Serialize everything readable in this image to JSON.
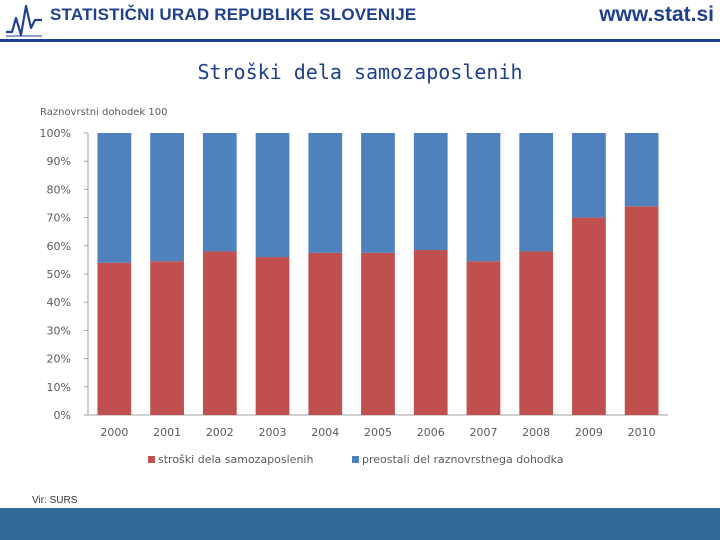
{
  "header": {
    "organization": "STATISTIČNI URAD REPUBLIKE SLOVENIJE",
    "website": "www.stat.si",
    "brand_color": "#1f3f8f"
  },
  "slide": {
    "title": "Stroški dela samozaposlenih",
    "source": "Vir: SURS"
  },
  "footer": {
    "color": "#2e6b96"
  },
  "chart_data": {
    "type": "bar",
    "stacked": true,
    "percent_stacked": true,
    "subtitle": "Raznovrstni dohodek  100",
    "categories": [
      "2000",
      "2001",
      "2002",
      "2003",
      "2004",
      "2005",
      "2006",
      "2007",
      "2008",
      "2009",
      "2010"
    ],
    "series": [
      {
        "name": "stroški dela samozaposlenih",
        "color": "#c0504d",
        "values": [
          54,
          54.5,
          58,
          56,
          57.5,
          57.5,
          58.5,
          54.5,
          58,
          70,
          74
        ]
      },
      {
        "name": "preostali del raznovrstnega dohodka",
        "color": "#4f81bd",
        "values": [
          46,
          45.5,
          42,
          44,
          42.5,
          42.5,
          41.5,
          45.5,
          42,
          30,
          26
        ]
      }
    ],
    "yticks": [
      "0%",
      "10%",
      "20%",
      "30%",
      "40%",
      "50%",
      "60%",
      "70%",
      "80%",
      "90%",
      "100%"
    ],
    "ylim": [
      0,
      100
    ],
    "legend_position": "bottom"
  }
}
